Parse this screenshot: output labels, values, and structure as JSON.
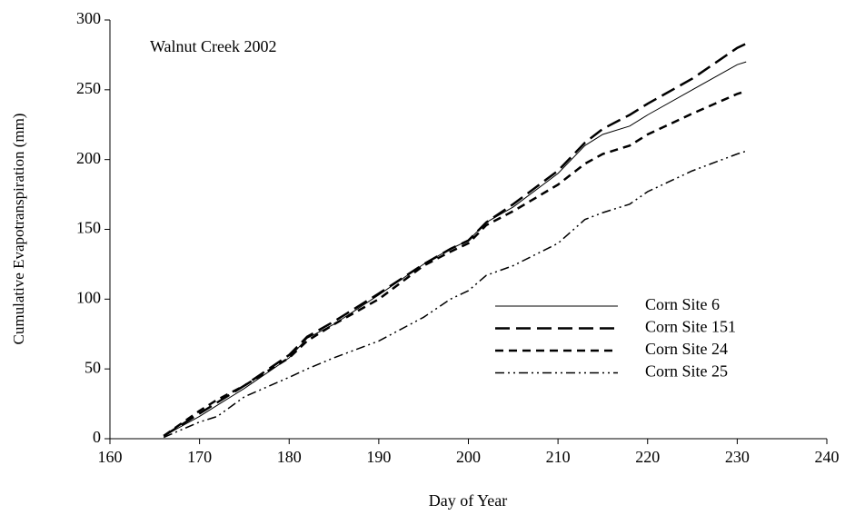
{
  "chart_data": {
    "type": "line",
    "annotation": "Walnut Creek 2002",
    "xlabel": "Day of Year",
    "ylabel": "Cumulative Evapotranspiration (mm)",
    "x": [
      166,
      170,
      172,
      175,
      180,
      182,
      185,
      190,
      195,
      198,
      200,
      202,
      205,
      210,
      213,
      215,
      218,
      220,
      225,
      230,
      231
    ],
    "series": [
      {
        "name": "Corn Site 6",
        "color": "#000000",
        "width": 1,
        "dash": "none",
        "values": [
          2,
          16,
          24,
          36,
          58,
          72,
          82,
          103,
          125,
          136,
          142,
          155,
          166,
          190,
          210,
          218,
          224,
          232,
          250,
          268,
          270
        ]
      },
      {
        "name": "Corn Site 151",
        "color": "#000000",
        "width": 2.5,
        "dash": "16,7",
        "values": [
          2,
          18,
          26,
          38,
          60,
          73,
          84,
          104,
          125,
          136,
          142,
          155,
          168,
          192,
          212,
          222,
          232,
          240,
          258,
          280,
          283
        ]
      },
      {
        "name": "Corn Site 24",
        "color": "#000000",
        "width": 2.5,
        "dash": "9,6",
        "values": [
          2,
          20,
          28,
          38,
          58,
          70,
          82,
          100,
          124,
          134,
          140,
          153,
          163,
          182,
          197,
          204,
          210,
          218,
          233,
          247,
          249
        ]
      },
      {
        "name": "Corn Site 25",
        "color": "#000000",
        "width": 1.5,
        "dash": "10,4,2,4,2,4",
        "values": [
          1,
          12,
          16,
          30,
          44,
          50,
          58,
          70,
          87,
          100,
          106,
          117,
          124,
          140,
          157,
          162,
          168,
          177,
          192,
          204,
          206
        ]
      }
    ],
    "xlim": [
      160,
      240
    ],
    "xticks": [
      160,
      170,
      180,
      190,
      200,
      210,
      220,
      230,
      240
    ],
    "ylim": [
      0,
      300
    ],
    "yticks": [
      0,
      50,
      100,
      150,
      200,
      250,
      300
    ],
    "grid": false,
    "legend": "right"
  }
}
